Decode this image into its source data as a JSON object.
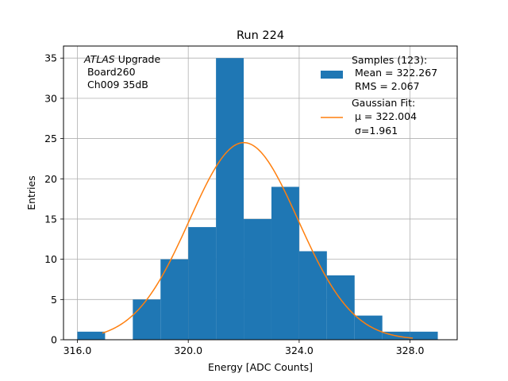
{
  "chart_data": {
    "type": "histogram",
    "title": "Run 224",
    "xlabel": "Energy [ADC Counts]",
    "ylabel": "Entries",
    "xlim": [
      315.5,
      329.7
    ],
    "ylim": [
      0,
      36.5
    ],
    "x_ticks": [
      316.0,
      320.0,
      324.0,
      328.0
    ],
    "x_tick_labels": [
      "316.0",
      "320.0",
      "324.0",
      "328.0"
    ],
    "y_ticks": [
      0,
      5,
      10,
      15,
      20,
      25,
      30,
      35
    ],
    "y_tick_labels": [
      "0",
      "5",
      "10",
      "15",
      "20",
      "25",
      "30",
      "35"
    ],
    "grid": true,
    "bins": [
      {
        "x0": 316,
        "x1": 317,
        "count": 1
      },
      {
        "x0": 317,
        "x1": 318,
        "count": 0
      },
      {
        "x0": 318,
        "x1": 319,
        "count": 5
      },
      {
        "x0": 319,
        "x1": 320,
        "count": 10
      },
      {
        "x0": 320,
        "x1": 321,
        "count": 14
      },
      {
        "x0": 321,
        "x1": 322,
        "count": 35
      },
      {
        "x0": 322,
        "x1": 323,
        "count": 15
      },
      {
        "x0": 323,
        "x1": 324,
        "count": 19
      },
      {
        "x0": 324,
        "x1": 325,
        "count": 11
      },
      {
        "x0": 325,
        "x1": 326,
        "count": 8
      },
      {
        "x0": 326,
        "x1": 327,
        "count": 3
      },
      {
        "x0": 327,
        "x1": 328,
        "count": 1
      },
      {
        "x0": 328,
        "x1": 329,
        "count": 1
      }
    ],
    "fit": {
      "mu": 322.004,
      "sigma": 1.961,
      "amplitude": 24.5,
      "x_range": [
        316.9,
        328.1
      ]
    },
    "colors": {
      "bars": "#1f77b4",
      "fit": "#ff7f0e",
      "grid": "#b0b0b0"
    },
    "legend_position": "top-right",
    "legend": [
      {
        "type": "bar",
        "lines": [
          "Samples (123):",
          " Mean = 322.267",
          " RMS = 2.067"
        ]
      },
      {
        "type": "line",
        "lines": [
          "Gaussian Fit:",
          " μ = 322.004",
          " σ=1.961"
        ]
      }
    ],
    "annotation": {
      "italic": "ATLAS",
      "rest": " Upgrade",
      "lines": [
        " Board260",
        " Ch009 35dB"
      ]
    }
  }
}
